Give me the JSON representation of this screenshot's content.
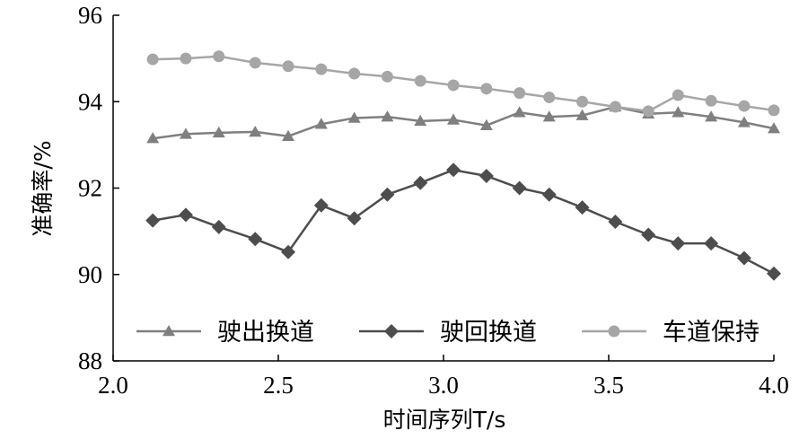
{
  "chart_data": {
    "type": "line",
    "title": "",
    "xlabel": "时间序列T/s",
    "ylabel": "准确率/%",
    "xlim": [
      2.0,
      4.0
    ],
    "ylim": [
      88,
      96
    ],
    "xticks": [
      "2.0",
      "2.5",
      "3.0",
      "3.5",
      "4.0"
    ],
    "yticks": [
      "88",
      "90",
      "92",
      "94",
      "96"
    ],
    "grid": false,
    "legend_position": "bottom-inside",
    "x": [
      2.12,
      2.22,
      2.32,
      2.43,
      2.53,
      2.63,
      2.73,
      2.83,
      2.93,
      3.03,
      3.13,
      3.23,
      3.32,
      3.42,
      3.52,
      3.62,
      3.71,
      3.81,
      3.91,
      4.0
    ],
    "series": [
      {
        "name": "驶出换道",
        "marker": "triangle",
        "color": "#7f7f7f",
        "values": [
          93.15,
          93.25,
          93.28,
          93.3,
          93.2,
          93.48,
          93.62,
          93.65,
          93.55,
          93.58,
          93.45,
          93.75,
          93.65,
          93.68,
          93.88,
          93.72,
          93.75,
          93.65,
          93.52,
          93.38
        ]
      },
      {
        "name": "驶回换道",
        "marker": "diamond",
        "color": "#4d4d4d",
        "values": [
          91.25,
          91.38,
          91.1,
          90.82,
          90.52,
          91.6,
          91.3,
          91.85,
          92.12,
          92.42,
          92.28,
          92.0,
          91.85,
          91.55,
          91.22,
          90.92,
          90.72,
          90.72,
          90.38,
          90.02
        ]
      },
      {
        "name": "车道保持",
        "marker": "circle",
        "color": "#a6a6a6",
        "values": [
          94.98,
          95.0,
          95.05,
          94.9,
          94.82,
          94.75,
          94.65,
          94.58,
          94.48,
          94.38,
          94.3,
          94.2,
          94.1,
          94.0,
          93.88,
          93.78,
          94.15,
          94.02,
          93.9,
          93.8
        ]
      }
    ]
  }
}
